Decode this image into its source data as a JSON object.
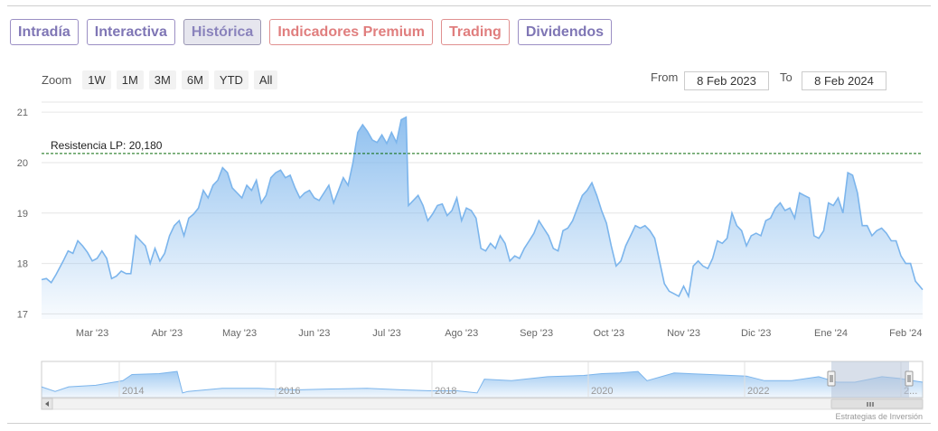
{
  "tabs": [
    {
      "label": "Intradía",
      "style": "normal"
    },
    {
      "label": "Interactiva",
      "style": "normal"
    },
    {
      "label": "Histórica",
      "style": "active"
    },
    {
      "label": "Indicadores Premium",
      "style": "premium"
    },
    {
      "label": "Trading",
      "style": "premium"
    },
    {
      "label": "Dividendos",
      "style": "normal"
    }
  ],
  "zoom": {
    "label": "Zoom",
    "buttons": [
      "1W",
      "1M",
      "3M",
      "6M",
      "YTD",
      "All"
    ]
  },
  "range": {
    "from_label": "From",
    "from_value": "8 Feb 2023",
    "to_label": "To",
    "to_value": "8 Feb 2024"
  },
  "colors": {
    "line": "#7cb5ec",
    "fill_top": "#7cb5ec",
    "grid": "#e6e6e6",
    "resistance": "#0a6b0a",
    "navigator_mask": "#b8c4d9"
  },
  "chart_data": {
    "type": "area",
    "title": "",
    "xlabel": "",
    "ylabel": "",
    "ylim": [
      16.9,
      21.2
    ],
    "xlim": [
      "2023-02-08",
      "2024-02-08"
    ],
    "y_ticks": [
      17,
      18,
      19,
      20,
      21
    ],
    "x_tick_labels": [
      {
        "date": "2023-03-01",
        "label": "Mar '23"
      },
      {
        "date": "2023-04-01",
        "label": "Abr '23"
      },
      {
        "date": "2023-05-01",
        "label": "May '23"
      },
      {
        "date": "2023-06-01",
        "label": "Jun '23"
      },
      {
        "date": "2023-07-01",
        "label": "Jul '23"
      },
      {
        "date": "2023-08-01",
        "label": "Ago '23"
      },
      {
        "date": "2023-09-01",
        "label": "Sep '23"
      },
      {
        "date": "2023-10-01",
        "label": "Oct '23"
      },
      {
        "date": "2023-11-01",
        "label": "Nov '23"
      },
      {
        "date": "2023-12-01",
        "label": "Dic '23"
      },
      {
        "date": "2024-01-01",
        "label": "Ene '24"
      },
      {
        "date": "2024-02-01",
        "label": "Feb '24"
      }
    ],
    "grid": true,
    "resistance": {
      "label": "Resistencia LP: 20,180",
      "value": 20.18
    },
    "series": [
      {
        "points": [
          [
            "2023-02-08",
            17.68
          ],
          [
            "2023-02-10",
            17.7
          ],
          [
            "2023-02-12",
            17.62
          ],
          [
            "2023-02-14",
            17.78
          ],
          [
            "2023-02-17",
            18.05
          ],
          [
            "2023-02-19",
            18.25
          ],
          [
            "2023-02-21",
            18.2
          ],
          [
            "2023-02-23",
            18.45
          ],
          [
            "2023-02-25",
            18.35
          ],
          [
            "2023-02-27",
            18.22
          ],
          [
            "2023-03-01",
            18.05
          ],
          [
            "2023-03-03",
            18.1
          ],
          [
            "2023-03-05",
            18.25
          ],
          [
            "2023-03-07",
            18.1
          ],
          [
            "2023-03-09",
            17.7
          ],
          [
            "2023-03-11",
            17.75
          ],
          [
            "2023-03-13",
            17.85
          ],
          [
            "2023-03-15",
            17.8
          ],
          [
            "2023-03-17",
            17.8
          ],
          [
            "2023-03-19",
            18.55
          ],
          [
            "2023-03-21",
            18.45
          ],
          [
            "2023-03-23",
            18.35
          ],
          [
            "2023-03-25",
            18.0
          ],
          [
            "2023-03-27",
            18.3
          ],
          [
            "2023-03-29",
            18.05
          ],
          [
            "2023-03-31",
            18.2
          ],
          [
            "2023-04-02",
            18.55
          ],
          [
            "2023-04-04",
            18.75
          ],
          [
            "2023-04-06",
            18.85
          ],
          [
            "2023-04-08",
            18.55
          ],
          [
            "2023-04-10",
            18.9
          ],
          [
            "2023-04-12",
            18.98
          ],
          [
            "2023-04-14",
            19.1
          ],
          [
            "2023-04-16",
            19.45
          ],
          [
            "2023-04-18",
            19.3
          ],
          [
            "2023-04-20",
            19.55
          ],
          [
            "2023-04-22",
            19.65
          ],
          [
            "2023-04-24",
            19.9
          ],
          [
            "2023-04-26",
            19.8
          ],
          [
            "2023-04-28",
            19.5
          ],
          [
            "2023-04-30",
            19.4
          ],
          [
            "2023-05-02",
            19.3
          ],
          [
            "2023-05-04",
            19.55
          ],
          [
            "2023-05-06",
            19.45
          ],
          [
            "2023-05-08",
            19.65
          ],
          [
            "2023-05-10",
            19.2
          ],
          [
            "2023-05-12",
            19.35
          ],
          [
            "2023-05-14",
            19.7
          ],
          [
            "2023-05-16",
            19.8
          ],
          [
            "2023-05-18",
            19.85
          ],
          [
            "2023-05-20",
            19.7
          ],
          [
            "2023-05-22",
            19.75
          ],
          [
            "2023-05-24",
            19.5
          ],
          [
            "2023-05-26",
            19.3
          ],
          [
            "2023-05-28",
            19.4
          ],
          [
            "2023-05-30",
            19.45
          ],
          [
            "2023-06-01",
            19.3
          ],
          [
            "2023-06-03",
            19.25
          ],
          [
            "2023-06-05",
            19.4
          ],
          [
            "2023-06-07",
            19.55
          ],
          [
            "2023-06-09",
            19.2
          ],
          [
            "2023-06-11",
            19.45
          ],
          [
            "2023-06-13",
            19.7
          ],
          [
            "2023-06-15",
            19.55
          ],
          [
            "2023-06-17",
            20.0
          ],
          [
            "2023-06-19",
            20.6
          ],
          [
            "2023-06-21",
            20.75
          ],
          [
            "2023-06-23",
            20.62
          ],
          [
            "2023-06-25",
            20.45
          ],
          [
            "2023-06-27",
            20.4
          ],
          [
            "2023-06-29",
            20.55
          ],
          [
            "2023-07-01",
            20.38
          ],
          [
            "2023-07-03",
            20.6
          ],
          [
            "2023-07-05",
            20.4
          ],
          [
            "2023-07-07",
            20.85
          ],
          [
            "2023-07-09",
            20.9
          ],
          [
            "2023-07-10",
            19.15
          ],
          [
            "2023-07-12",
            19.25
          ],
          [
            "2023-07-14",
            19.35
          ],
          [
            "2023-07-16",
            19.15
          ],
          [
            "2023-07-18",
            18.85
          ],
          [
            "2023-07-20",
            18.98
          ],
          [
            "2023-07-22",
            19.15
          ],
          [
            "2023-07-24",
            19.18
          ],
          [
            "2023-07-26",
            18.95
          ],
          [
            "2023-07-28",
            19.05
          ],
          [
            "2023-07-30",
            19.3
          ],
          [
            "2023-08-01",
            18.85
          ],
          [
            "2023-08-03",
            19.1
          ],
          [
            "2023-08-05",
            19.05
          ],
          [
            "2023-08-07",
            18.9
          ],
          [
            "2023-08-09",
            18.3
          ],
          [
            "2023-08-11",
            18.25
          ],
          [
            "2023-08-13",
            18.4
          ],
          [
            "2023-08-15",
            18.3
          ],
          [
            "2023-08-17",
            18.55
          ],
          [
            "2023-08-19",
            18.4
          ],
          [
            "2023-08-21",
            18.05
          ],
          [
            "2023-08-23",
            18.15
          ],
          [
            "2023-08-25",
            18.1
          ],
          [
            "2023-08-27",
            18.3
          ],
          [
            "2023-08-29",
            18.45
          ],
          [
            "2023-08-31",
            18.6
          ],
          [
            "2023-09-02",
            18.85
          ],
          [
            "2023-09-04",
            18.7
          ],
          [
            "2023-09-06",
            18.55
          ],
          [
            "2023-09-08",
            18.3
          ],
          [
            "2023-09-10",
            18.25
          ],
          [
            "2023-09-12",
            18.65
          ],
          [
            "2023-09-14",
            18.7
          ],
          [
            "2023-09-16",
            18.85
          ],
          [
            "2023-09-18",
            19.1
          ],
          [
            "2023-09-20",
            19.35
          ],
          [
            "2023-09-22",
            19.45
          ],
          [
            "2023-09-24",
            19.6
          ],
          [
            "2023-09-26",
            19.35
          ],
          [
            "2023-09-28",
            19.05
          ],
          [
            "2023-09-30",
            18.8
          ],
          [
            "2023-10-02",
            18.35
          ],
          [
            "2023-10-04",
            17.95
          ],
          [
            "2023-10-06",
            18.05
          ],
          [
            "2023-10-08",
            18.35
          ],
          [
            "2023-10-10",
            18.55
          ],
          [
            "2023-10-12",
            18.75
          ],
          [
            "2023-10-14",
            18.7
          ],
          [
            "2023-10-16",
            18.75
          ],
          [
            "2023-10-18",
            18.65
          ],
          [
            "2023-10-20",
            18.5
          ],
          [
            "2023-10-22",
            18.05
          ],
          [
            "2023-10-24",
            17.6
          ],
          [
            "2023-10-26",
            17.45
          ],
          [
            "2023-10-28",
            17.4
          ],
          [
            "2023-10-30",
            17.35
          ],
          [
            "2023-11-01",
            17.55
          ],
          [
            "2023-11-03",
            17.35
          ],
          [
            "2023-11-05",
            17.95
          ],
          [
            "2023-11-07",
            18.05
          ],
          [
            "2023-11-09",
            17.95
          ],
          [
            "2023-11-11",
            17.9
          ],
          [
            "2023-11-13",
            18.1
          ],
          [
            "2023-11-15",
            18.45
          ],
          [
            "2023-11-17",
            18.4
          ],
          [
            "2023-11-19",
            18.5
          ],
          [
            "2023-11-21",
            19.0
          ],
          [
            "2023-11-23",
            18.75
          ],
          [
            "2023-11-25",
            18.65
          ],
          [
            "2023-11-27",
            18.35
          ],
          [
            "2023-11-29",
            18.55
          ],
          [
            "2023-12-01",
            18.6
          ],
          [
            "2023-12-03",
            18.55
          ],
          [
            "2023-12-05",
            18.85
          ],
          [
            "2023-12-07",
            18.9
          ],
          [
            "2023-12-09",
            19.1
          ],
          [
            "2023-12-11",
            19.2
          ],
          [
            "2023-12-13",
            19.05
          ],
          [
            "2023-12-15",
            19.1
          ],
          [
            "2023-12-17",
            18.9
          ],
          [
            "2023-12-19",
            19.4
          ],
          [
            "2023-12-21",
            19.35
          ],
          [
            "2023-12-23",
            19.3
          ],
          [
            "2023-12-25",
            18.55
          ],
          [
            "2023-12-27",
            18.5
          ],
          [
            "2023-12-29",
            18.65
          ],
          [
            "2023-12-31",
            19.2
          ],
          [
            "2024-01-02",
            19.15
          ],
          [
            "2024-01-04",
            19.3
          ],
          [
            "2024-01-06",
            19.0
          ],
          [
            "2024-01-08",
            19.8
          ],
          [
            "2024-01-10",
            19.75
          ],
          [
            "2024-01-12",
            19.4
          ],
          [
            "2024-01-14",
            18.75
          ],
          [
            "2024-01-16",
            18.75
          ],
          [
            "2024-01-18",
            18.55
          ],
          [
            "2024-01-20",
            18.65
          ],
          [
            "2024-01-22",
            18.7
          ],
          [
            "2024-01-24",
            18.6
          ],
          [
            "2024-01-26",
            18.45
          ],
          [
            "2024-01-28",
            18.45
          ],
          [
            "2024-01-30",
            18.15
          ],
          [
            "2024-02-01",
            18.0
          ],
          [
            "2024-02-03",
            18.0
          ],
          [
            "2024-02-05",
            17.65
          ],
          [
            "2024-02-08",
            17.48
          ]
        ]
      }
    ],
    "navigator": {
      "x_ticks": [
        "2014",
        "2016",
        "2018",
        "2020",
        "2022",
        "2..."
      ],
      "selection": [
        "2023-02-08",
        "2024-02-08"
      ]
    }
  },
  "credits": "Estrategias de Inversión"
}
